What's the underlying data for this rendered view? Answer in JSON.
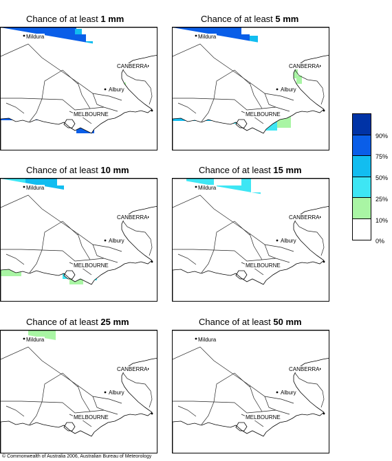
{
  "panels": [
    {
      "prefix": "Chance of at least ",
      "amount": "1 mm",
      "pattern": "p1"
    },
    {
      "prefix": "Chance of at least ",
      "amount": "5 mm",
      "pattern": "p5"
    },
    {
      "prefix": "Chance of at least ",
      "amount": "10 mm",
      "pattern": "p10"
    },
    {
      "prefix": "Chance of at least ",
      "amount": "15 mm",
      "pattern": "p15"
    },
    {
      "prefix": "Chance of at least ",
      "amount": "25 mm",
      "pattern": "p25"
    },
    {
      "prefix": "Chance of at least ",
      "amount": "50 mm",
      "pattern": "p50"
    }
  ],
  "cities": [
    "Mildura",
    "CANBERRA",
    "Albury",
    "MELBOURNE"
  ],
  "legend": {
    "labels": [
      "90%",
      "75%",
      "50%",
      "25%",
      "10%",
      "0%"
    ],
    "colors": [
      "#0033a6",
      "#0a5ee8",
      "#12bdf0",
      "#3ee6f4",
      "#a9f5a4",
      "#ffffff"
    ]
  },
  "copyright": "© Commonwealth of Australia 2006, Australian Bureau of Meteorology"
}
